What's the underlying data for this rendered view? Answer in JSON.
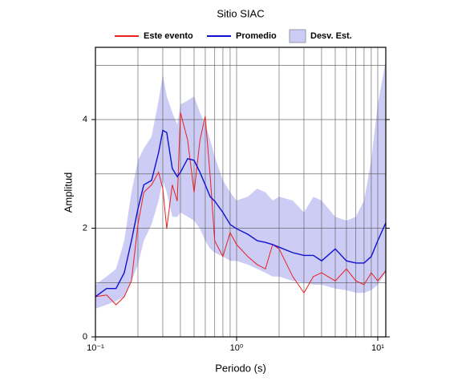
{
  "chart_data": {
    "type": "spectrum",
    "title": "Sitio SIAC",
    "x_label": "Periodo (s)",
    "y_label": "Amplitud",
    "log_x": true,
    "xlim": [
      0.1,
      11.4
    ],
    "ylim": [
      0,
      5.33
    ],
    "xticks": [
      {
        "value": 0.1,
        "label": "10⁻¹"
      },
      {
        "value": 1,
        "label": "10⁰"
      },
      {
        "value": 10,
        "label": "10¹"
      }
    ],
    "yticks": [
      0,
      2,
      4
    ],
    "xgrid": [
      0.2,
      0.3,
      0.4,
      0.5,
      0.6,
      0.7,
      0.8,
      0.9,
      1,
      2,
      3,
      4,
      5,
      6,
      7,
      8,
      9,
      10
    ],
    "ygrid": [
      1,
      2,
      3,
      4,
      5
    ],
    "x": [
      0.1,
      0.12,
      0.14,
      0.16,
      0.18,
      0.2,
      0.22,
      0.25,
      0.28,
      0.3,
      0.32,
      0.35,
      0.38,
      0.4,
      0.45,
      0.5,
      0.55,
      0.6,
      0.65,
      0.7,
      0.8,
      0.9,
      1.0,
      1.2,
      1.4,
      1.6,
      1.8,
      2.0,
      2.5,
      3,
      3.5,
      4,
      5,
      6,
      7,
      8,
      9,
      10,
      11.4
    ],
    "band": {
      "name": "Desv. Est.",
      "color": "#ccccf5",
      "upper": [
        0.96,
        1.11,
        1.25,
        1.77,
        2.66,
        3.25,
        3.47,
        3.69,
        4.35,
        4.83,
        4.43,
        4.13,
        3.91,
        4.28,
        4.35,
        4.43,
        4.13,
        3.91,
        3.62,
        3.32,
        2.88,
        2.66,
        2.51,
        2.58,
        2.73,
        2.66,
        2.51,
        2.58,
        2.51,
        2.29,
        2.58,
        2.51,
        2.21,
        2.14,
        2.21,
        2.51,
        3.25,
        4.28,
        5.09
      ],
      "lower": [
        0.52,
        0.59,
        0.66,
        0.74,
        1.03,
        1.33,
        1.77,
        2.07,
        2.51,
        2.88,
        2.66,
        2.21,
        2.21,
        2.29,
        2.21,
        2.14,
        1.99,
        1.77,
        1.62,
        1.55,
        1.48,
        1.4,
        1.4,
        1.33,
        1.25,
        1.18,
        1.11,
        1.11,
        1.03,
        1.0,
        0.96,
        0.96,
        0.89,
        0.86,
        0.81,
        0.81,
        0.86,
        0.96,
        1.18
      ]
    },
    "series": [
      {
        "name": "Este evento",
        "color": "#e82020",
        "values": [
          0.74,
          0.77,
          0.59,
          0.74,
          1.03,
          2.07,
          2.66,
          2.8,
          3.03,
          2.73,
          1.99,
          2.8,
          2.5,
          4.13,
          3.62,
          2.66,
          3.62,
          4.06,
          2.95,
          1.77,
          1.48,
          1.92,
          1.7,
          1.48,
          1.33,
          1.25,
          1.7,
          1.62,
          1.11,
          0.81,
          1.11,
          1.18,
          1.03,
          1.25,
          1.03,
          0.96,
          1.18,
          1.03,
          1.22
        ]
      },
      {
        "name": "Promedio",
        "color": "#1010d0",
        "values": [
          0.74,
          0.89,
          0.89,
          1.18,
          1.77,
          2.36,
          2.8,
          2.88,
          3.39,
          3.8,
          3.76,
          3.1,
          2.95,
          3.03,
          3.28,
          3.25,
          3.03,
          2.8,
          2.58,
          2.5,
          2.29,
          2.07,
          1.99,
          1.89,
          1.77,
          1.74,
          1.7,
          1.65,
          1.55,
          1.5,
          1.5,
          1.4,
          1.62,
          1.4,
          1.36,
          1.36,
          1.48,
          1.77,
          2.1
        ]
      }
    ]
  }
}
